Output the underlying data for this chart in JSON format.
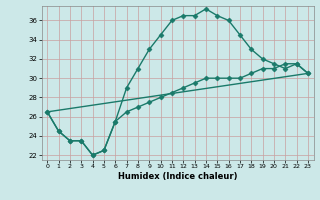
{
  "xlabel": "Humidex (Indice chaleur)",
  "ylabel": "",
  "xlim": [
    -0.5,
    23.5
  ],
  "ylim": [
    21.5,
    37.5
  ],
  "yticks": [
    22,
    24,
    26,
    28,
    30,
    32,
    34,
    36
  ],
  "xticks": [
    0,
    1,
    2,
    3,
    4,
    5,
    6,
    7,
    8,
    9,
    10,
    11,
    12,
    13,
    14,
    15,
    16,
    17,
    18,
    19,
    20,
    21,
    22,
    23
  ],
  "bg_color": "#cce8e8",
  "grid_color": "#b0d0d0",
  "line_color": "#1a7a6a",
  "line1": {
    "x": [
      0,
      1,
      2,
      3,
      4,
      5,
      6,
      7,
      8,
      9,
      10,
      11,
      12,
      13,
      14,
      15,
      16,
      17,
      18,
      19,
      20,
      21,
      22,
      23
    ],
    "y": [
      26.5,
      24.5,
      23.5,
      23.5,
      22.0,
      22.5,
      25.5,
      29.0,
      31.0,
      33.0,
      34.5,
      36.0,
      36.5,
      36.5,
      37.2,
      36.5,
      36.0,
      34.5,
      33.0,
      32.0,
      31.5,
      31.0,
      31.5,
      30.5
    ]
  },
  "line2": {
    "x": [
      0,
      1,
      2,
      3,
      4,
      5,
      6,
      7,
      8,
      9,
      10,
      11,
      12,
      13,
      14,
      15,
      16,
      17,
      18,
      19,
      20,
      21,
      22,
      23
    ],
    "y": [
      26.5,
      24.5,
      23.5,
      23.5,
      22.0,
      22.5,
      25.5,
      26.5,
      27.0,
      27.5,
      28.0,
      28.5,
      29.0,
      29.5,
      30.0,
      30.0,
      30.0,
      30.0,
      30.5,
      31.0,
      31.0,
      31.5,
      31.5,
      30.5
    ]
  },
  "line3": {
    "x": [
      0,
      23
    ],
    "y": [
      26.5,
      30.5
    ]
  },
  "marker": "D",
  "marker_size": 2.5,
  "line_width": 1.0
}
